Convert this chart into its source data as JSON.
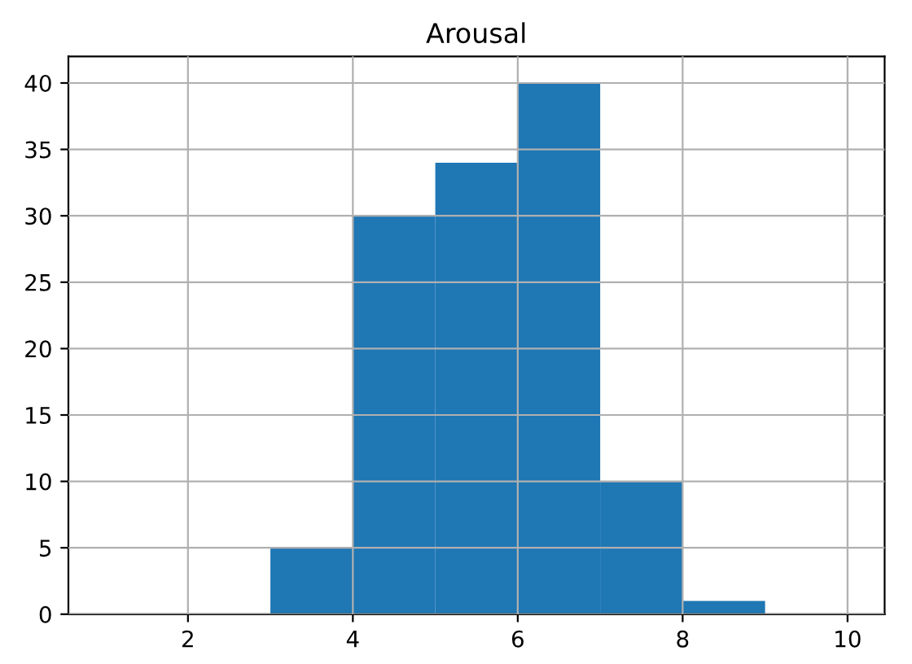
{
  "chart_data": {
    "type": "histogram",
    "title": "Arousal",
    "bins": [
      1,
      2,
      3,
      4,
      5,
      6,
      7,
      8,
      9,
      10
    ],
    "values": [
      0,
      0,
      5,
      30,
      34,
      40,
      10,
      1,
      0
    ],
    "color": "#1f77b4",
    "xlim": [
      0.55,
      10.45
    ],
    "xticks": [
      2,
      4,
      6,
      8,
      10
    ],
    "ylim": [
      0,
      42
    ],
    "yticks": [
      0,
      5,
      10,
      15,
      20,
      25,
      30,
      35,
      40
    ],
    "grid": true
  }
}
